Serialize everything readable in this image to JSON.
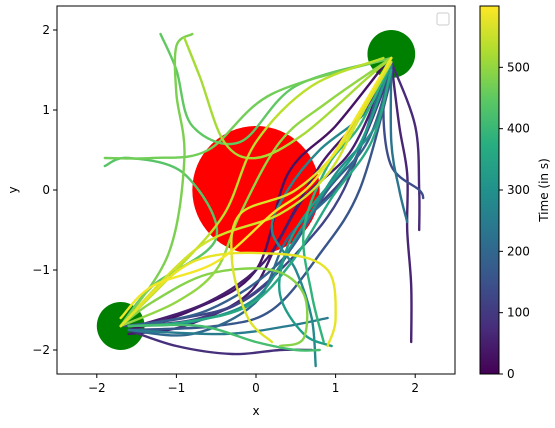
{
  "chart_data": {
    "type": "line",
    "title": "",
    "xlabel": "x",
    "ylabel": "y",
    "xlim": [
      -2.5,
      2.5
    ],
    "ylim": [
      -2.3,
      2.3
    ],
    "x_ticks": [
      -2,
      -1,
      0,
      1,
      2
    ],
    "y_ticks": [
      -2,
      -1,
      0,
      1,
      2
    ],
    "x_tick_labels": [
      "−2",
      "−1",
      "0",
      "1",
      "2"
    ],
    "y_tick_labels": [
      "−2",
      "−1",
      "0",
      "1",
      "2"
    ],
    "legend": {
      "placement": "top-right",
      "entries": []
    },
    "colorbar": {
      "label": "Time (in s)",
      "range": [
        0,
        600
      ],
      "ticks": [
        0,
        100,
        200,
        300,
        400,
        500
      ],
      "colormap": "viridis"
    },
    "circles": [
      {
        "name": "obstacle",
        "color": "#ff0000",
        "center": [
          0.0,
          0.0
        ],
        "radius": 0.8
      },
      {
        "name": "goal-top-right",
        "color": "#008000",
        "center": [
          1.7,
          1.7
        ],
        "radius": 0.3
      },
      {
        "name": "goal-bottom-left",
        "color": "#008000",
        "center": [
          -1.7,
          -1.7
        ],
        "radius": 0.3
      }
    ],
    "series": [
      {
        "time": 30,
        "points": [
          [
            -1.6,
            -1.75
          ],
          [
            -0.8,
            -1.5
          ],
          [
            0.0,
            -1.0
          ],
          [
            0.4,
            0.2
          ],
          [
            1.0,
            0.8
          ],
          [
            1.6,
            1.55
          ]
        ]
      },
      {
        "time": 40,
        "points": [
          [
            -1.6,
            -1.8
          ],
          [
            -0.9,
            -1.7
          ],
          [
            -0.1,
            -1.3
          ],
          [
            0.3,
            -0.6
          ],
          [
            0.8,
            0.3
          ],
          [
            1.3,
            0.9
          ],
          [
            1.7,
            1.6
          ]
        ]
      },
      {
        "time": 50,
        "points": [
          [
            -1.5,
            -1.7
          ],
          [
            -0.6,
            -1.4
          ],
          [
            0.1,
            -0.9
          ],
          [
            0.6,
            -0.1
          ],
          [
            1.2,
            0.5
          ],
          [
            1.65,
            1.5
          ]
        ]
      },
      {
        "time": 60,
        "points": [
          [
            1.7,
            1.6
          ],
          [
            1.8,
            0.8
          ],
          [
            1.9,
            0.2
          ],
          [
            1.9,
            -0.5
          ],
          [
            1.95,
            -1.2
          ],
          [
            1.95,
            -1.9
          ]
        ]
      },
      {
        "time": 70,
        "points": [
          [
            1.7,
            1.6
          ],
          [
            2.0,
            0.8
          ],
          [
            2.05,
            0.0
          ],
          [
            2.05,
            -0.5
          ]
        ]
      },
      {
        "time": 80,
        "points": [
          [
            -1.6,
            -1.75
          ],
          [
            -1.0,
            -1.95
          ],
          [
            -0.3,
            -2.05
          ],
          [
            0.3,
            -2.0
          ],
          [
            0.7,
            -2.0
          ]
        ]
      },
      {
        "time": 100,
        "points": [
          [
            -1.6,
            -1.7
          ],
          [
            -0.7,
            -1.6
          ],
          [
            0.1,
            -1.2
          ],
          [
            0.7,
            -0.3
          ],
          [
            1.2,
            0.3
          ],
          [
            1.7,
            1.5
          ]
        ]
      },
      {
        "time": 120,
        "points": [
          [
            -1.65,
            -1.7
          ],
          [
            -0.9,
            -1.6
          ],
          [
            -0.2,
            -1.4
          ],
          [
            0.5,
            -0.8
          ],
          [
            1.1,
            0.0
          ],
          [
            1.6,
            1.4
          ]
        ]
      },
      {
        "time": 140,
        "points": [
          [
            1.7,
            1.6
          ],
          [
            1.6,
            1.0
          ],
          [
            1.7,
            0.3
          ],
          [
            2.05,
            0.0
          ],
          [
            2.1,
            -0.1
          ]
        ]
      },
      {
        "time": 160,
        "points": [
          [
            -1.6,
            -1.75
          ],
          [
            -0.5,
            -1.7
          ],
          [
            0.2,
            -1.5
          ],
          [
            0.8,
            -0.8
          ],
          [
            1.3,
            0.0
          ],
          [
            1.7,
            1.4
          ]
        ]
      },
      {
        "time": 180,
        "points": [
          [
            -1.6,
            -1.7
          ],
          [
            -0.6,
            -1.5
          ],
          [
            0.3,
            -0.9
          ],
          [
            0.9,
            0.0
          ],
          [
            1.4,
            0.6
          ],
          [
            1.7,
            1.5
          ]
        ]
      },
      {
        "time": 200,
        "points": [
          [
            1.7,
            1.6
          ],
          [
            1.5,
            1.1
          ],
          [
            1.3,
            0.5
          ],
          [
            1.0,
            0.0
          ],
          [
            0.4,
            -0.6
          ],
          [
            0.0,
            -1.4
          ],
          [
            -0.8,
            -1.8
          ],
          [
            -1.6,
            -1.75
          ]
        ]
      },
      {
        "time": 230,
        "points": [
          [
            1.7,
            1.6
          ],
          [
            1.7,
            0.6
          ],
          [
            1.8,
            0.0
          ],
          [
            1.9,
            -0.4
          ]
        ]
      },
      {
        "time": 250,
        "points": [
          [
            -1.6,
            -1.75
          ],
          [
            -0.4,
            -1.8
          ],
          [
            0.4,
            -1.7
          ],
          [
            0.9,
            -1.6
          ]
        ]
      },
      {
        "time": 280,
        "points": [
          [
            1.65,
            1.6
          ],
          [
            1.4,
            1.0
          ],
          [
            0.8,
            0.5
          ],
          [
            0.4,
            0.0
          ],
          [
            0.2,
            -0.5
          ],
          [
            0.5,
            -1.0
          ],
          [
            0.7,
            -1.6
          ],
          [
            0.75,
            -2.2
          ]
        ]
      },
      {
        "time": 300,
        "points": [
          [
            -1.6,
            -1.7
          ],
          [
            -0.8,
            -1.65
          ],
          [
            0.0,
            -1.35
          ],
          [
            0.5,
            -0.6
          ],
          [
            1.0,
            0.2
          ],
          [
            1.5,
            0.8
          ],
          [
            1.7,
            1.55
          ]
        ]
      },
      {
        "time": 330,
        "points": [
          [
            1.7,
            1.6
          ],
          [
            1.45,
            0.9
          ],
          [
            1.2,
            0.4
          ],
          [
            0.7,
            -0.2
          ],
          [
            0.4,
            -0.7
          ],
          [
            0.3,
            -1.3
          ],
          [
            0.6,
            -1.8
          ],
          [
            0.95,
            -1.95
          ]
        ]
      },
      {
        "time": 360,
        "points": [
          [
            -1.6,
            -1.7
          ],
          [
            -0.9,
            -1.65
          ],
          [
            -0.1,
            -1.45
          ],
          [
            0.45,
            -0.9
          ],
          [
            0.95,
            -0.1
          ],
          [
            1.45,
            0.6
          ],
          [
            1.7,
            1.5
          ]
        ]
      },
      {
        "time": 390,
        "points": [
          [
            1.7,
            1.6
          ],
          [
            1.3,
            0.8
          ],
          [
            0.9,
            0.3
          ],
          [
            0.6,
            -0.5
          ],
          [
            0.7,
            -1.3
          ],
          [
            0.85,
            -1.9
          ]
        ]
      },
      {
        "time": 420,
        "points": [
          [
            -1.6,
            -1.7
          ],
          [
            -0.7,
            -1.7
          ],
          [
            0.0,
            -1.9
          ],
          [
            0.5,
            -2.0
          ],
          [
            0.8,
            -2.0
          ]
        ]
      },
      {
        "time": 440,
        "points": [
          [
            -1.7,
            -1.7
          ],
          [
            -1.3,
            -1.2
          ],
          [
            -0.5,
            -0.6
          ],
          [
            -0.9,
            0.2
          ],
          [
            -1.6,
            0.4
          ],
          [
            -1.9,
            0.3
          ]
        ]
      },
      {
        "time": 450,
        "points": [
          [
            1.7,
            1.65
          ],
          [
            0.5,
            1.3
          ],
          [
            -0.2,
            0.6
          ],
          [
            -0.8,
            0.8
          ],
          [
            -1.0,
            1.5
          ],
          [
            -1.2,
            1.95
          ]
        ]
      },
      {
        "time": 470,
        "points": [
          [
            1.7,
            1.65
          ],
          [
            0.2,
            1.2
          ],
          [
            -0.6,
            0.5
          ],
          [
            -1.3,
            0.4
          ],
          [
            -1.9,
            0.4
          ]
        ]
      },
      {
        "time": 480,
        "points": [
          [
            -1.7,
            -1.7
          ],
          [
            -1.1,
            -0.8
          ],
          [
            -0.9,
            0.4
          ],
          [
            -1.0,
            1.2
          ],
          [
            -1.0,
            1.8
          ],
          [
            -0.8,
            1.95
          ]
        ]
      },
      {
        "time": 490,
        "points": [
          [
            -1.7,
            -1.7
          ],
          [
            -1.3,
            -1.4
          ],
          [
            -0.6,
            -1.05
          ],
          [
            0.2,
            -1.0
          ],
          [
            0.6,
            -1.3
          ],
          [
            0.6,
            -1.85
          ],
          [
            0.3,
            -1.95
          ]
        ]
      },
      {
        "time": 500,
        "points": [
          [
            1.7,
            1.65
          ],
          [
            0.9,
            1.1
          ],
          [
            0.3,
            0.6
          ],
          [
            -0.2,
            -0.3
          ],
          [
            -0.5,
            -1.0
          ],
          [
            -1.0,
            -1.4
          ],
          [
            -1.7,
            -1.7
          ]
        ]
      },
      {
        "time": 520,
        "points": [
          [
            1.7,
            1.65
          ],
          [
            1.4,
            1.4
          ],
          [
            0.6,
            0.7
          ],
          [
            0.0,
            0.4
          ],
          [
            -0.4,
            0.6
          ],
          [
            -0.7,
            1.4
          ],
          [
            -0.9,
            1.9
          ]
        ]
      },
      {
        "time": 540,
        "points": [
          [
            -1.7,
            -1.7
          ],
          [
            -1.0,
            -1.0
          ],
          [
            -0.4,
            -0.3
          ],
          [
            0.0,
            0.6
          ],
          [
            0.7,
            1.3
          ],
          [
            1.6,
            1.65
          ]
        ]
      },
      {
        "time": 560,
        "points": [
          [
            -1.7,
            -1.7
          ],
          [
            -0.7,
            -0.7
          ],
          [
            0.3,
            -0.3
          ],
          [
            0.9,
            0.2
          ],
          [
            1.3,
            0.9
          ],
          [
            1.7,
            1.6
          ]
        ]
      },
      {
        "time": 570,
        "points": [
          [
            1.7,
            1.65
          ],
          [
            1.1,
            0.6
          ],
          [
            0.5,
            0.0
          ],
          [
            -0.2,
            -0.3
          ],
          [
            -0.3,
            -0.9
          ],
          [
            -0.1,
            -1.6
          ],
          [
            0.2,
            -1.9
          ]
        ]
      },
      {
        "time": 580,
        "points": [
          [
            -1.7,
            -1.7
          ],
          [
            -0.8,
            -0.9
          ],
          [
            0.3,
            -0.8
          ],
          [
            0.9,
            -1.0
          ],
          [
            1.0,
            -1.6
          ],
          [
            0.9,
            -1.95
          ]
        ]
      },
      {
        "time": 590,
        "points": [
          [
            1.7,
            1.65
          ],
          [
            0.8,
            0.2
          ],
          [
            0.2,
            -0.3
          ],
          [
            -0.5,
            -0.9
          ],
          [
            -1.3,
            -1.2
          ],
          [
            -1.7,
            -1.6
          ]
        ]
      }
    ]
  }
}
